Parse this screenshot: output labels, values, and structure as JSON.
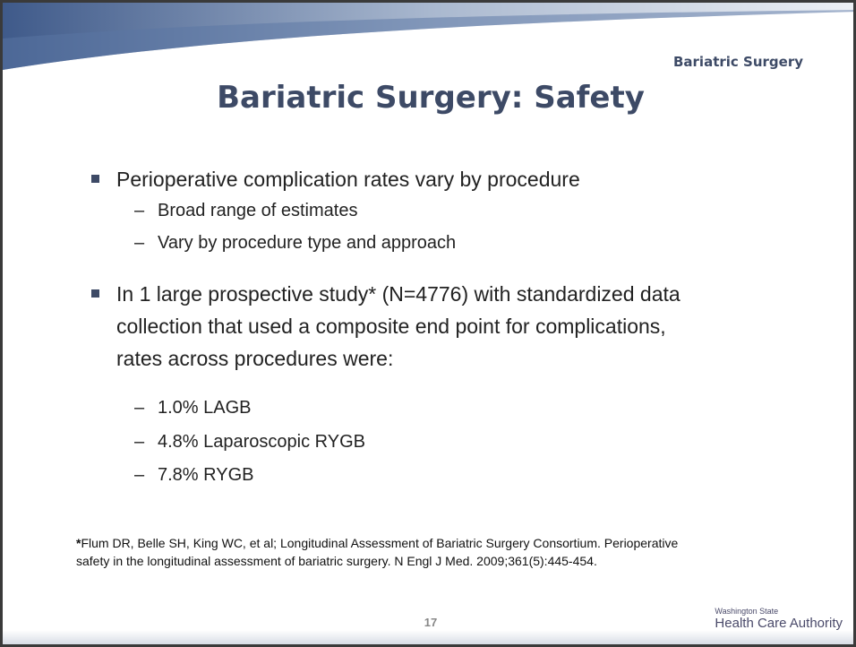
{
  "header_label": "Bariatric Surgery",
  "title": "Bariatric Surgery: Safety",
  "bullets": [
    {
      "text": "Perioperative complication rates vary by procedure",
      "sub": [
        "Broad range of estimates",
        "Vary by procedure type and approach"
      ]
    },
    {
      "text": "In 1 large prospective study* (N=4776) with standardized data collection that used a composite end point for complications, rates across procedures were:",
      "sub": [
        "1.0% LAGB",
        "4.8% Laparoscopic RYGB",
        "7.8% RYGB"
      ]
    }
  ],
  "footnote": {
    "marker": "*",
    "text": "Flum DR, Belle SH, King WC, et al; Longitudinal Assessment of Bariatric Surgery Consortium. Perioperative safety in the longitudinal assessment of bariatric surgery. N Engl J Med. 2009;361(5):445-454."
  },
  "page_number": "17",
  "logo": {
    "top": "Washington State",
    "bottom": "Health Care Authority"
  }
}
